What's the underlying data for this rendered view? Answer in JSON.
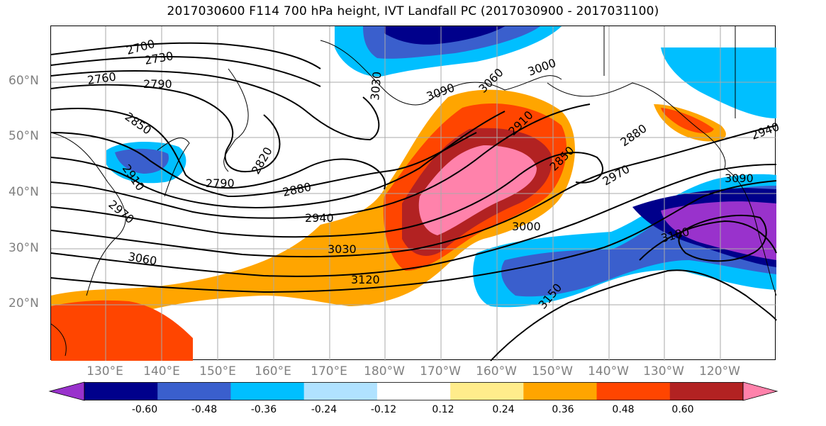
{
  "title": "2017030600 F114 700 hPa height, IVT Landfall PC (2017030900 - 2017031100)",
  "map": {
    "lat_labels": [
      "60°N",
      "50°N",
      "40°N",
      "30°N",
      "20°N"
    ],
    "lon_labels": [
      "130°E",
      "140°E",
      "150°E",
      "160°E",
      "170°E",
      "180°W",
      "170°W",
      "160°W",
      "150°W",
      "140°W",
      "130°W",
      "120°W"
    ],
    "contour_labels": [
      "2700",
      "2730",
      "2760",
      "2790",
      "2850",
      "2910",
      "2970",
      "3060",
      "2790",
      "2820",
      "2880",
      "2940",
      "3030",
      "3120",
      "3030",
      "3090",
      "3060",
      "3000",
      "2910",
      "2850",
      "2880",
      "2970",
      "2940",
      "3000",
      "3090",
      "3180",
      "3150"
    ]
  },
  "colorbar": {
    "ticks": [
      "-0.60",
      "-0.48",
      "-0.36",
      "-0.24",
      "-0.12",
      "0.12",
      "0.24",
      "0.36",
      "0.48",
      "0.60"
    ],
    "colors": [
      "#9932cc",
      "#00008b",
      "#3a5fcd",
      "#00bfff",
      "#b0e2ff",
      "#ffffff",
      "#ffec8b",
      "#ffa500",
      "#ff4500",
      "#b22222",
      "#ff82ab"
    ]
  }
}
